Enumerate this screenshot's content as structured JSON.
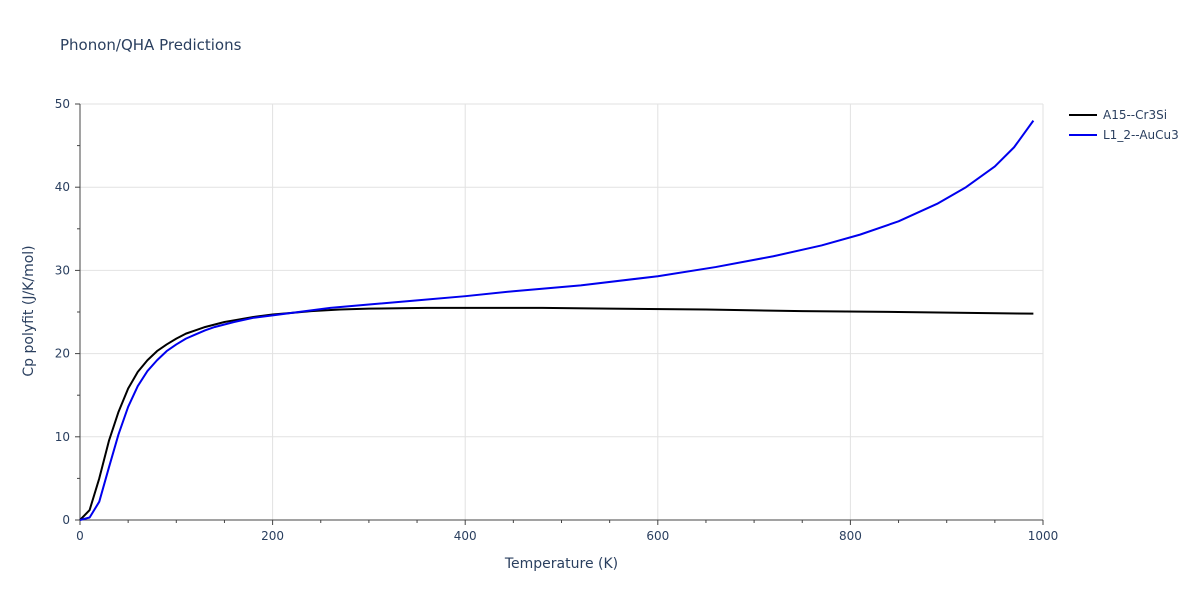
{
  "chart_data": {
    "type": "line",
    "title": "Phonon/QHA Predictions",
    "xlabel": "Temperature (K)",
    "ylabel": "Cp polyfit (J/K/mol)",
    "xlim": [
      0,
      1000
    ],
    "ylim": [
      0,
      50
    ],
    "x_ticks": [
      0,
      200,
      400,
      600,
      800,
      1000
    ],
    "y_ticks": [
      0,
      10,
      20,
      30,
      40,
      50
    ],
    "grid": true,
    "legend_position": "top-right",
    "series": [
      {
        "name": "A15--Cr3Si",
        "color": "#000000",
        "x": [
          0,
          10,
          20,
          30,
          40,
          50,
          60,
          70,
          80,
          90,
          100,
          110,
          120,
          130,
          140,
          150,
          160,
          180,
          200,
          220,
          240,
          270,
          300,
          360,
          400,
          480,
          550,
          650,
          750,
          850,
          990
        ],
        "y": [
          0,
          1.2,
          5.0,
          9.5,
          13.0,
          15.8,
          17.8,
          19.2,
          20.3,
          21.1,
          21.8,
          22.4,
          22.8,
          23.2,
          23.5,
          23.8,
          24.0,
          24.4,
          24.7,
          24.9,
          25.1,
          25.3,
          25.4,
          25.5,
          25.5,
          25.5,
          25.4,
          25.3,
          25.1,
          25.0,
          24.8
        ]
      },
      {
        "name": "L1_2--AuCu3",
        "color": "#0000ee",
        "x": [
          0,
          10,
          20,
          30,
          40,
          50,
          60,
          70,
          80,
          90,
          100,
          110,
          120,
          130,
          140,
          150,
          160,
          180,
          200,
          220,
          260,
          300,
          350,
          400,
          450,
          520,
          600,
          660,
          720,
          770,
          810,
          850,
          890,
          920,
          950,
          970,
          990
        ],
        "y": [
          0,
          0.3,
          2.2,
          6.3,
          10.3,
          13.6,
          16.1,
          17.9,
          19.2,
          20.3,
          21.1,
          21.8,
          22.3,
          22.8,
          23.2,
          23.5,
          23.8,
          24.3,
          24.6,
          24.9,
          25.5,
          25.9,
          26.4,
          26.9,
          27.5,
          28.2,
          29.3,
          30.4,
          31.7,
          33.0,
          34.3,
          35.9,
          38.0,
          40.0,
          42.5,
          44.8,
          48.0
        ]
      }
    ]
  }
}
